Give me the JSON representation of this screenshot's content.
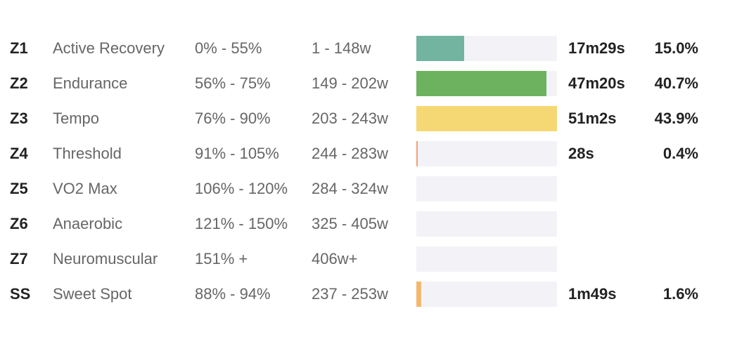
{
  "zones": [
    {
      "id": "Z1",
      "name": "Active Recovery",
      "percent_range": "0% - 55%",
      "watts_range": "1 - 148w",
      "time": "17m29s",
      "share": "15.0%",
      "share_value": 15.0,
      "color": "#73b4a0"
    },
    {
      "id": "Z2",
      "name": "Endurance",
      "percent_range": "56% - 75%",
      "watts_range": "149 - 202w",
      "time": "47m20s",
      "share": "40.7%",
      "share_value": 40.7,
      "color": "#6db25f"
    },
    {
      "id": "Z3",
      "name": "Tempo",
      "percent_range": "76% - 90%",
      "watts_range": "203 - 243w",
      "time": "51m2s",
      "share": "43.9%",
      "share_value": 43.9,
      "color": "#f5d874"
    },
    {
      "id": "Z4",
      "name": "Threshold",
      "percent_range": "91% - 105%",
      "watts_range": "244 - 283w",
      "time": "28s",
      "share": "0.4%",
      "share_value": 0.4,
      "color": "#f0a072"
    },
    {
      "id": "Z5",
      "name": "VO2 Max",
      "percent_range": "106% - 120%",
      "watts_range": "284 - 324w",
      "time": "",
      "share": "",
      "share_value": 0,
      "color": "#e57a6b"
    },
    {
      "id": "Z6",
      "name": "Anaerobic",
      "percent_range": "121% - 150%",
      "watts_range": "325 - 405w",
      "time": "",
      "share": "",
      "share_value": 0,
      "color": "#c9728f"
    },
    {
      "id": "Z7",
      "name": "Neuromuscular",
      "percent_range": "151% +",
      "watts_range": "406w+",
      "time": "",
      "share": "",
      "share_value": 0,
      "color": "#9b7fc2"
    },
    {
      "id": "SS",
      "name": "Sweet Spot",
      "percent_range": "88% - 94%",
      "watts_range": "237 - 253w",
      "time": "1m49s",
      "share": "1.6%",
      "share_value": 1.6,
      "color": "#f2b872"
    }
  ],
  "bar_max_share": 43.9
}
